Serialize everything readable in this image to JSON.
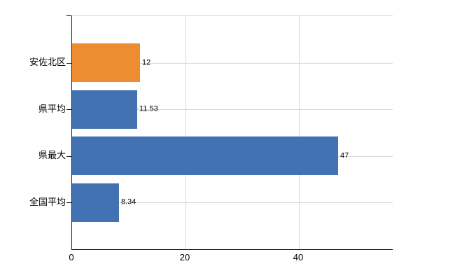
{
  "chart_data": {
    "type": "bar",
    "orientation": "horizontal",
    "title": "",
    "categories": [
      "安佐北区",
      "県平均",
      "県最大",
      "全国平均"
    ],
    "values": [
      12,
      11.53,
      47,
      8.34
    ],
    "value_labels": [
      "12",
      "11.53",
      "47",
      "8.34"
    ],
    "bar_colors": [
      "#ee8c31",
      "#4272b2",
      "#4272b2",
      "#4272b2"
    ],
    "x_ticks": [
      0,
      20,
      40
    ],
    "x_tick_labels": [
      "0",
      "20",
      "40"
    ],
    "xlim": [
      0,
      56.6
    ],
    "grid": true,
    "legend_position": "none"
  },
  "colors": {
    "bar_orange": "#ee8c31",
    "bar_blue": "#4272b2",
    "gridline": "#d6dbd0",
    "axis": "#1a1a1a",
    "background": "#ffffff"
  }
}
